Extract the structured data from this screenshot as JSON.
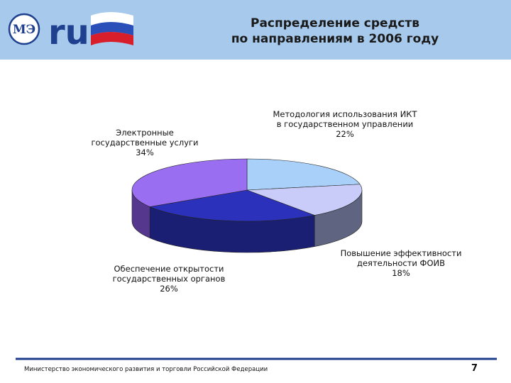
{
  "header": {
    "title_line1": "Распределение средств",
    "title_line2": "по направлениям в 2006 году",
    "logo_text": "ru",
    "logo_icon": "ministry-emblem-icon",
    "flag_colors": [
      "#ffffff",
      "#2a4fb8",
      "#d81e2a"
    ]
  },
  "chart_data": {
    "type": "pie",
    "style": "3d",
    "title": "Распределение средств по направлениям в 2006 году",
    "slices": [
      {
        "label_lines": [
          "Методология использования ИКТ",
          "в государственном управлении"
        ],
        "percent_text": "22%",
        "value": 22,
        "color": "#a8d0f8",
        "side_color": "#6c8fb4"
      },
      {
        "label_lines": [
          "Повышение эффективности",
          "деятельности ФОИВ"
        ],
        "percent_text": "18%",
        "value": 18,
        "color": "#c9ccf9",
        "side_color": "#5f6480"
      },
      {
        "label_lines": [
          "Обеспечение открытости",
          "государственных органов"
        ],
        "percent_text": "26%",
        "value": 26,
        "color": "#2b31ba",
        "side_color": "#1b1f74"
      },
      {
        "label_lines": [
          "Электронные",
          "государственные услуги"
        ],
        "percent_text": "34%",
        "value": 34,
        "color": "#9a6ef0",
        "side_color": "#55378e"
      }
    ]
  },
  "footer": {
    "text": "Министерство экономического развития и торговли Российской Федерации",
    "page_number": "7",
    "line_color": "#1e3c8c"
  }
}
